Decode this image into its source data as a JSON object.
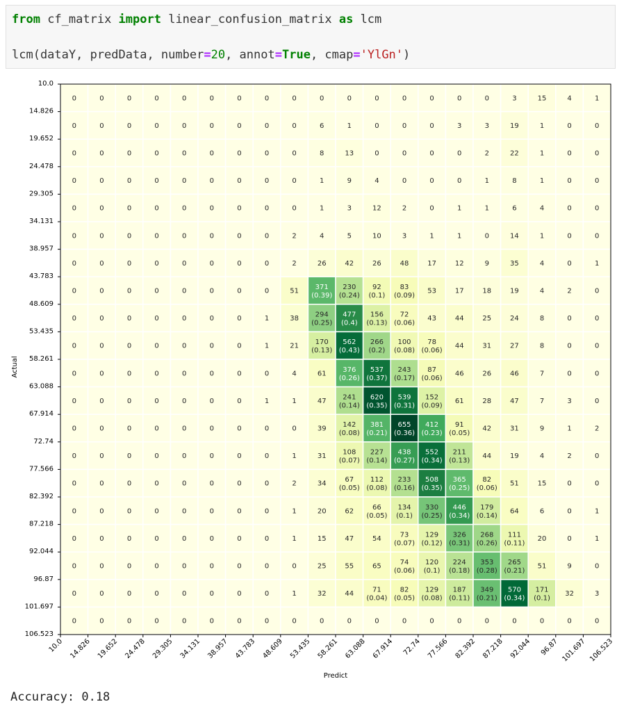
{
  "code_cell": {
    "line1": {
      "kw_from": "from",
      "module": " cf_matrix ",
      "kw_import": "import",
      "func": " linear_confusion_matrix ",
      "kw_as": "as",
      "alias": " lcm"
    },
    "line2": {
      "call": "lcm(dataY, predData, number",
      "eq1": "=",
      "num": "20",
      "p2": ", annot",
      "eq2": "=",
      "true": "True",
      "p3": ", cmap",
      "eq3": "=",
      "str": "'YlGn'",
      "close": ")"
    }
  },
  "output": {
    "accuracy": "Accuracy: 0.18"
  },
  "chart_data": {
    "type": "heatmap",
    "colormap": "YlGn",
    "xlabel": "Predict",
    "ylabel": "Actual",
    "tick_labels": [
      "10.0",
      "14.826",
      "19.652",
      "24.478",
      "29.305",
      "34.131",
      "38.957",
      "43.783",
      "48.609",
      "53.435",
      "58.261",
      "63.088",
      "67.914",
      "72.74",
      "77.566",
      "82.392",
      "87.218",
      "92.044",
      "96.87",
      "101.697",
      "106.523"
    ],
    "counts": [
      [
        0,
        0,
        0,
        0,
        0,
        0,
        0,
        0,
        0,
        0,
        0,
        0,
        0,
        0,
        0,
        0,
        3,
        15,
        4,
        1,
        0
      ],
      [
        0,
        0,
        0,
        0,
        0,
        0,
        0,
        0,
        0,
        6,
        1,
        0,
        0,
        0,
        3,
        3,
        19,
        1,
        0,
        0,
        null
      ],
      [
        0,
        0,
        0,
        0,
        0,
        0,
        0,
        0,
        0,
        8,
        13,
        0,
        0,
        0,
        0,
        2,
        22,
        1,
        0,
        0,
        null
      ],
      [
        0,
        0,
        0,
        0,
        0,
        0,
        0,
        0,
        0,
        1,
        9,
        4,
        0,
        0,
        0,
        1,
        8,
        1,
        0,
        0,
        null
      ],
      [
        0,
        0,
        0,
        0,
        0,
        0,
        0,
        0,
        0,
        1,
        3,
        12,
        2,
        0,
        1,
        1,
        6,
        4,
        0,
        0,
        null
      ],
      [
        0,
        0,
        0,
        0,
        0,
        0,
        0,
        0,
        2,
        4,
        5,
        10,
        3,
        1,
        1,
        0,
        14,
        1,
        0,
        0,
        null
      ],
      [
        0,
        0,
        0,
        0,
        0,
        0,
        0,
        0,
        2,
        26,
        42,
        26,
        48,
        17,
        12,
        9,
        35,
        4,
        0,
        1,
        null
      ],
      [
        0,
        0,
        0,
        0,
        0,
        0,
        0,
        0,
        51,
        371,
        230,
        92,
        83,
        53,
        17,
        18,
        19,
        4,
        2,
        0,
        null
      ],
      [
        0,
        0,
        0,
        0,
        0,
        0,
        0,
        1,
        38,
        294,
        477,
        156,
        72,
        43,
        44,
        25,
        24,
        8,
        0,
        0,
        null
      ],
      [
        0,
        0,
        0,
        0,
        0,
        0,
        0,
        1,
        21,
        170,
        562,
        266,
        100,
        78,
        44,
        31,
        27,
        8,
        0,
        0,
        null
      ],
      [
        0,
        0,
        0,
        0,
        0,
        0,
        0,
        0,
        4,
        61,
        376,
        537,
        243,
        87,
        46,
        26,
        46,
        7,
        0,
        0,
        null
      ],
      [
        0,
        0,
        0,
        0,
        0,
        0,
        0,
        1,
        1,
        47,
        241,
        620,
        539,
        152,
        61,
        28,
        47,
        7,
        3,
        0,
        null
      ],
      [
        0,
        0,
        0,
        0,
        0,
        0,
        0,
        0,
        0,
        39,
        142,
        381,
        655,
        412,
        91,
        42,
        31,
        9,
        1,
        2,
        null
      ],
      [
        0,
        0,
        0,
        0,
        0,
        0,
        0,
        0,
        1,
        31,
        108,
        227,
        438,
        552,
        211,
        44,
        19,
        4,
        2,
        0,
        null
      ],
      [
        0,
        0,
        0,
        0,
        0,
        0,
        0,
        0,
        2,
        34,
        67,
        112,
        233,
        508,
        365,
        82,
        51,
        15,
        0,
        0,
        null
      ],
      [
        0,
        0,
        0,
        0,
        0,
        0,
        0,
        0,
        1,
        20,
        62,
        66,
        134,
        330,
        446,
        179,
        64,
        6,
        0,
        1,
        null
      ],
      [
        0,
        0,
        0,
        0,
        0,
        0,
        0,
        0,
        1,
        15,
        47,
        54,
        73,
        129,
        326,
        268,
        111,
        20,
        0,
        1,
        null
      ],
      [
        0,
        0,
        0,
        0,
        0,
        0,
        0,
        0,
        0,
        25,
        55,
        65,
        74,
        120,
        224,
        353,
        265,
        51,
        9,
        0,
        null
      ],
      [
        0,
        0,
        0,
        0,
        0,
        0,
        0,
        0,
        1,
        32,
        44,
        71,
        82,
        129,
        187,
        349,
        570,
        171,
        32,
        3,
        null
      ],
      [
        0,
        0,
        0,
        0,
        0,
        0,
        0,
        0,
        0,
        0,
        0,
        0,
        0,
        0,
        0,
        0,
        0,
        0,
        0,
        0,
        null
      ]
    ],
    "proportions": {
      "7": {
        "9": "(0.39)",
        "10": "(0.24)",
        "11": "(0.1)",
        "12": "(0.09)"
      },
      "8": {
        "9": "(0.25)",
        "10": "(0.4)",
        "11": "(0.13)",
        "12": "(0.06)"
      },
      "9": {
        "9": "(0.13)",
        "10": "(0.43)",
        "11": "(0.2)",
        "12": "(0.08)",
        "13": "(0.06)"
      },
      "10": {
        "10": "(0.26)",
        "11": "(0.37)",
        "12": "(0.17)",
        "13": "(0.06)"
      },
      "11": {
        "10": "(0.14)",
        "11": "(0.35)",
        "12": "(0.31)",
        "13": "(0.09)"
      },
      "12": {
        "10": "(0.08)",
        "11": "(0.21)",
        "12": "(0.36)",
        "13": "(0.23)",
        "14": "(0.05)"
      },
      "13": {
        "10": "(0.07)",
        "11": "(0.14)",
        "12": "(0.27)",
        "13": "(0.34)",
        "14": "(0.13)"
      },
      "14": {
        "10": "(0.05)",
        "11": "(0.08)",
        "12": "(0.16)",
        "13": "(0.35)",
        "14": "(0.25)",
        "15": "(0.06)"
      },
      "15": {
        "11": "(0.05)",
        "12": "(0.1)",
        "13": "(0.25)",
        "14": "(0.34)",
        "15": "(0.14)"
      },
      "16": {
        "12": "(0.07)",
        "13": "(0.12)",
        "14": "(0.31)",
        "15": "(0.26)",
        "16": "(0.11)"
      },
      "17": {
        "12": "(0.06)",
        "13": "(0.1)",
        "14": "(0.18)",
        "15": "(0.28)",
        "16": "(0.21)"
      },
      "18": {
        "11": "(0.04)",
        "12": "(0.05)",
        "13": "(0.08)",
        "14": "(0.11)",
        "15": "(0.21)",
        "16": "(0.34)",
        "17": "(0.1)"
      }
    },
    "grid": false,
    "legend": "none"
  }
}
